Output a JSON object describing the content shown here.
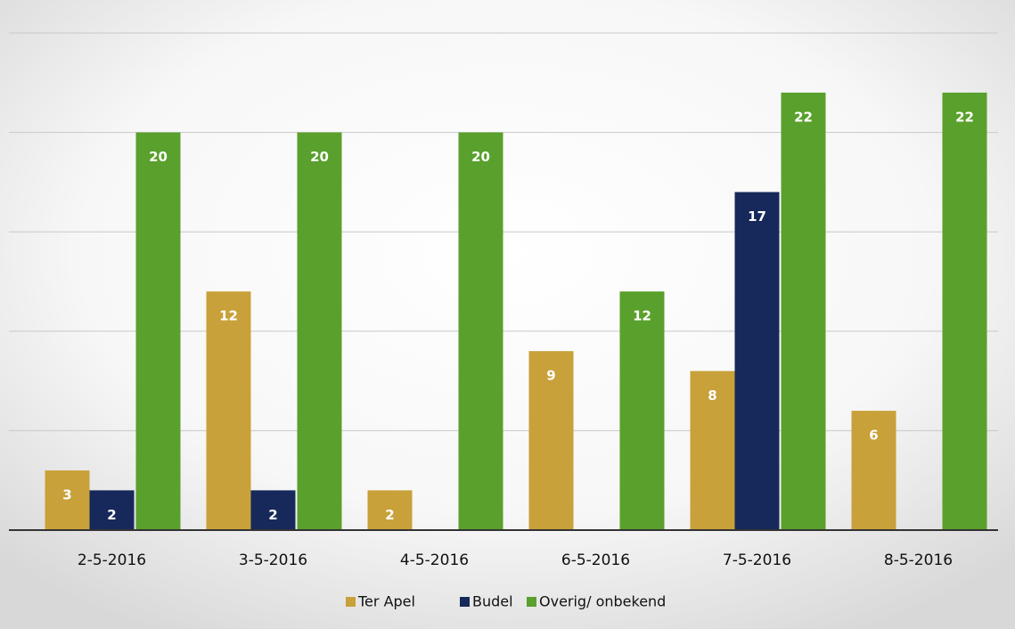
{
  "chart_data": {
    "type": "bar",
    "categories": [
      "2-5-2016",
      "3-5-2016",
      "4-5-2016",
      "6-5-2016",
      "7-5-2016",
      "8-5-2016"
    ],
    "series": [
      {
        "name": "Ter Apel",
        "color": "#c9a13a",
        "values": [
          3,
          12,
          2,
          9,
          8,
          6
        ]
      },
      {
        "name": "Budel",
        "color": "#17295a",
        "values": [
          2,
          2,
          null,
          null,
          17,
          null
        ]
      },
      {
        "name": "Overig/ onbekend",
        "color": "#5aa02c",
        "values": [
          20,
          20,
          20,
          12,
          22,
          22
        ]
      }
    ],
    "ylim": [
      0,
      25
    ],
    "yticks": [
      0,
      5,
      10,
      15,
      20,
      25
    ],
    "grid": true,
    "legend": "bottom"
  }
}
